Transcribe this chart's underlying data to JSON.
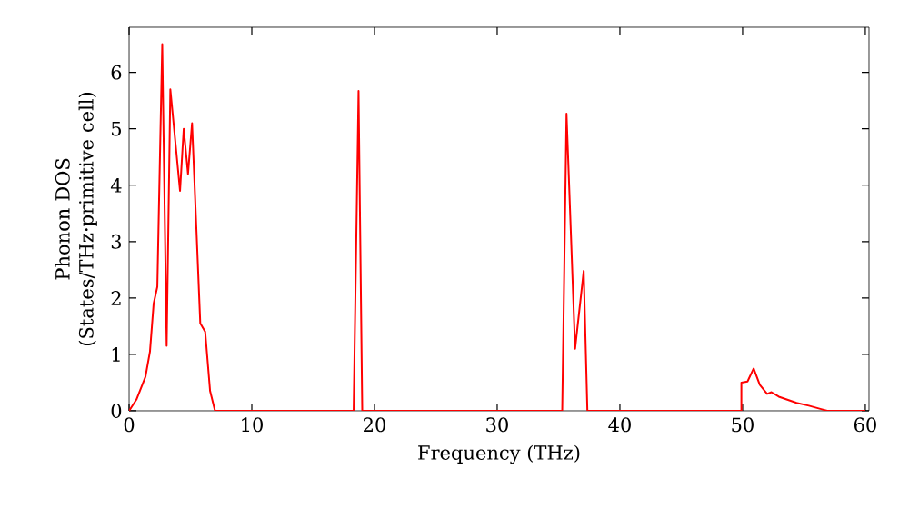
{
  "chart_data": {
    "type": "line",
    "xlabel": "Frequency (THz)",
    "ylabel": "Phonon DOS (States/THz·primitive cell)",
    "xlim": [
      0,
      60.3
    ],
    "ylim": [
      0,
      6.8
    ],
    "xticks": [
      0,
      10,
      20,
      30,
      40,
      50,
      60
    ],
    "yticks": [
      0,
      1,
      2,
      3,
      4,
      5,
      6
    ],
    "grid": false,
    "marker": "none",
    "line_style": "solid",
    "series": [
      {
        "color": "#ff0000",
        "x": [
          0,
          0.6,
          1.33,
          1.7,
          2.0,
          2.3,
          2.7,
          3.06,
          3.36,
          4.15,
          4.45,
          4.8,
          5.13,
          5.8,
          6.2,
          6.6,
          7.0,
          18.3,
          18.7,
          19.0,
          35.3,
          35.65,
          36.35,
          37.05,
          37.35,
          49.9,
          49.9,
          50.4,
          50.9,
          51.4,
          52.0,
          52.35,
          52.95,
          54.4,
          55.4,
          56.4,
          56.9,
          60
        ],
        "values": [
          0,
          0.2,
          0.6,
          1.05,
          1.9,
          2.2,
          6.5,
          1.15,
          5.7,
          3.9,
          5.0,
          4.2,
          5.1,
          1.55,
          1.4,
          0.35,
          0,
          0,
          5.67,
          0,
          0,
          5.27,
          1.1,
          2.48,
          0,
          0,
          0.5,
          0.52,
          0.75,
          0.46,
          0.3,
          0.33,
          0.25,
          0.14,
          0.09,
          0.03,
          0,
          0
        ]
      }
    ]
  }
}
